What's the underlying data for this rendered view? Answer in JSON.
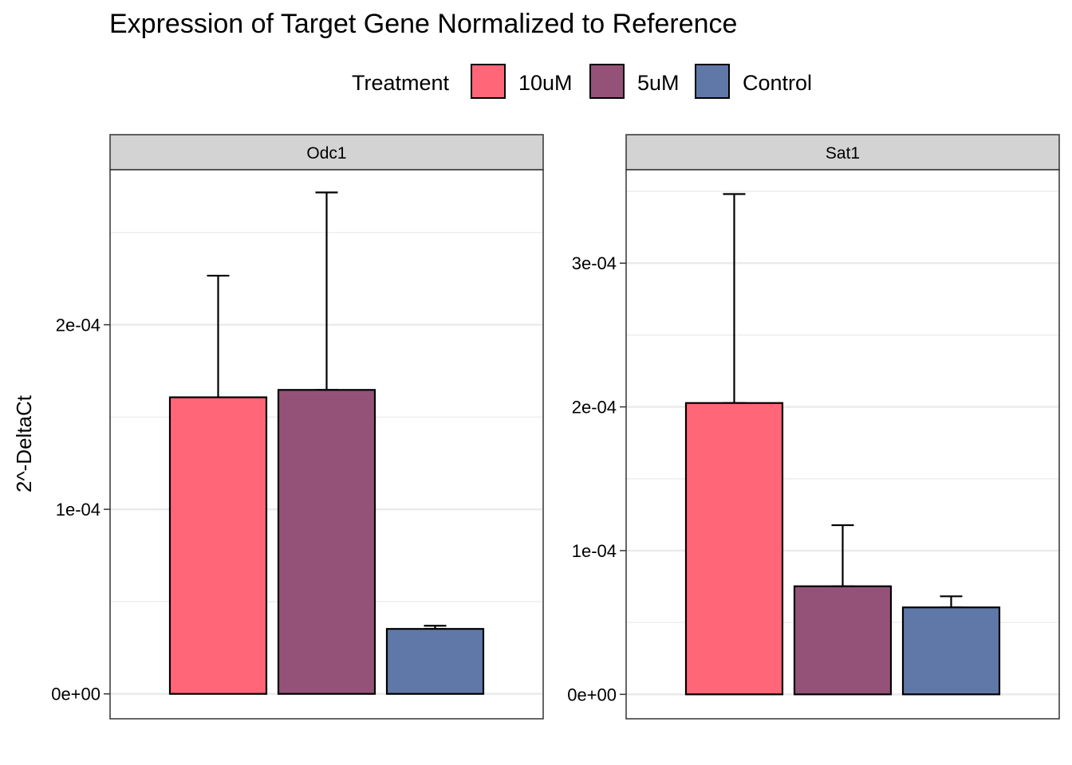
{
  "colors": {
    "10uM": "#FF6677",
    "5uM": "#955279",
    "Control": "#6078A8",
    "strip_bg": "#D3D3D3",
    "grid": "#EBEBEB",
    "border": "#333333"
  },
  "chart_data": {
    "type": "bar",
    "title": "Expression of Target Gene Normalized to Reference",
    "ylabel": "2^-DeltaCt",
    "xlabel": "",
    "legend": {
      "title": "Treatment",
      "position": "top",
      "entries": [
        "10uM",
        "5uM",
        "Control"
      ]
    },
    "grid": true,
    "categories": [
      "10uM",
      "5uM",
      "Control"
    ],
    "facets": [
      {
        "name": "Odc1",
        "ylim": [
          -1.35e-05,
          0.000284
        ],
        "yticks": [
          0,
          0.0001,
          0.0002
        ],
        "ytick_labels": [
          "0e+00",
          "1e-04",
          "2e-04"
        ],
        "values": [
          0.0001607,
          0.0001647,
          3.52e-05
        ],
        "error_upper": [
          0.0002266,
          0.0002717,
          3.69e-05
        ]
      },
      {
        "name": "Sat1",
        "ylim": [
          -1.7e-05,
          0.000365
        ],
        "yticks": [
          0,
          0.0001,
          0.0002,
          0.0003
        ],
        "ytick_labels": [
          "0e+00",
          "1e-04",
          "2e-04",
          "3e-04"
        ],
        "values": [
          0.0002027,
          7.52e-05,
          6.05e-05
        ],
        "error_upper": [
          0.0003481,
          0.0001177,
          6.82e-05
        ]
      }
    ]
  }
}
